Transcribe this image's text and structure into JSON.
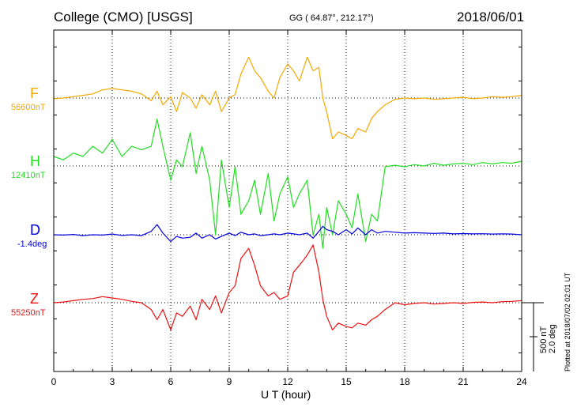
{
  "header": {
    "station": "College (CMO)  [USGS]",
    "coords": "GG ( 64.87°, 212.17°)",
    "date": "2018/06/01"
  },
  "plotted_note": "Plotted at 2018/07/02 02:01  UT",
  "scale": {
    "line1": "500 nT",
    "line2": "2.0 deg"
  },
  "chart_data": {
    "type": "line",
    "xlabel": "U T (hour)",
    "xlim": [
      0,
      24
    ],
    "xticks": [
      0,
      3,
      6,
      9,
      12,
      15,
      18,
      21,
      24
    ],
    "grid": true,
    "trace_scale": {
      "nT_per_division": 500,
      "deg_per_division": 2.0
    },
    "series": [
      {
        "name": "F",
        "baseline_label": "56600nT",
        "color": "#f5a800",
        "baseline": 56600,
        "unit": "nT",
        "x": [
          0,
          0.5,
          1,
          1.5,
          2,
          2.5,
          3,
          3.5,
          4,
          4.5,
          5,
          5.3,
          5.6,
          6,
          6.3,
          6.6,
          7,
          7.3,
          7.6,
          8,
          8.3,
          8.6,
          9,
          9.3,
          9.6,
          10,
          10.3,
          10.6,
          11,
          11.3,
          11.6,
          12,
          12.3,
          12.6,
          13,
          13.3,
          13.6,
          13.8,
          14,
          14.3,
          14.6,
          15,
          15.3,
          15.6,
          16,
          16.3,
          16.6,
          17,
          17.5,
          18,
          18.5,
          19,
          19.5,
          20,
          20.5,
          21,
          21.5,
          22,
          22.5,
          23,
          23.5,
          24
        ],
        "y": [
          56590,
          56600,
          56620,
          56640,
          56660,
          56720,
          56740,
          56720,
          56700,
          56660,
          56560,
          56700,
          56500,
          56620,
          56400,
          56680,
          56600,
          56450,
          56650,
          56500,
          56700,
          56400,
          56600,
          56650,
          56950,
          57200,
          57000,
          56900,
          56700,
          56600,
          56900,
          57100,
          57000,
          56850,
          57200,
          57000,
          57050,
          56600,
          56400,
          56000,
          56100,
          56050,
          56000,
          56150,
          56100,
          56300,
          56400,
          56500,
          56580,
          56600,
          56590,
          56600,
          56580,
          56590,
          56600,
          56610,
          56590,
          56600,
          56620,
          56610,
          56620,
          56640
        ]
      },
      {
        "name": "H",
        "baseline_label": "12410nT",
        "color": "#22dd22",
        "baseline": 12410,
        "unit": "nT",
        "x": [
          0,
          0.5,
          1,
          1.5,
          2,
          2.5,
          3,
          3.5,
          4,
          4.5,
          5,
          5.3,
          5.6,
          6,
          6.3,
          6.6,
          7,
          7.3,
          7.6,
          8,
          8.3,
          8.6,
          9,
          9.3,
          9.6,
          10,
          10.3,
          10.6,
          11,
          11.3,
          11.6,
          12,
          12.3,
          12.6,
          13,
          13.3,
          13.6,
          13.8,
          14,
          14.3,
          14.6,
          15,
          15.3,
          15.6,
          16,
          16.3,
          16.6,
          17,
          17.5,
          18,
          18.5,
          19,
          19.5,
          20,
          20.5,
          21,
          21.5,
          22,
          22.5,
          23,
          23.5,
          24
        ],
        "y": [
          12550,
          12500,
          12600,
          12550,
          12700,
          12600,
          12800,
          12550,
          12700,
          12650,
          12700,
          13100,
          12700,
          12200,
          12500,
          12400,
          12900,
          12300,
          12700,
          12200,
          11400,
          12500,
          11800,
          12400,
          11700,
          11900,
          12200,
          11700,
          12300,
          11600,
          12000,
          12250,
          11800,
          12000,
          12200,
          11400,
          11700,
          11200,
          11800,
          11400,
          11900,
          11700,
          11500,
          12000,
          11300,
          11700,
          11600,
          12400,
          12420,
          12400,
          12430,
          12410,
          12450,
          12420,
          12440,
          12450,
          12430,
          12460,
          12440,
          12460,
          12450,
          12480
        ]
      },
      {
        "name": "D",
        "baseline_label": "-1.4deg",
        "color": "#0000dd",
        "baseline": -1.4,
        "unit": "deg",
        "x": [
          0,
          0.5,
          1,
          1.5,
          2,
          2.5,
          3,
          3.5,
          4,
          4.5,
          5,
          5.3,
          5.6,
          6,
          6.3,
          6.6,
          7,
          7.3,
          7.6,
          8,
          8.3,
          8.6,
          9,
          9.3,
          9.6,
          10,
          10.3,
          10.6,
          11,
          11.3,
          11.6,
          12,
          12.3,
          12.6,
          13,
          13.3,
          13.6,
          13.8,
          14,
          14.3,
          14.6,
          15,
          15.3,
          15.6,
          16,
          16.3,
          16.6,
          17,
          17.5,
          18,
          18.5,
          19,
          19.5,
          20,
          20.5,
          21,
          21.5,
          22,
          22.5,
          23,
          23.5,
          24
        ],
        "y": [
          -1.4,
          -1.42,
          -1.38,
          -1.45,
          -1.4,
          -1.42,
          -1.36,
          -1.44,
          -1.4,
          -1.45,
          -1.2,
          -0.8,
          -1.3,
          -1.8,
          -1.5,
          -1.6,
          -1.55,
          -1.3,
          -1.6,
          -1.4,
          -1.65,
          -1.5,
          -1.3,
          -1.45,
          -1.25,
          -1.4,
          -1.35,
          -1.45,
          -1.4,
          -1.35,
          -1.4,
          -1.3,
          -1.35,
          -1.4,
          -1.3,
          -1.6,
          -1.2,
          -0.9,
          -1.1,
          -1.2,
          -1.4,
          -1.1,
          -1.35,
          -1.0,
          -1.4,
          -1.1,
          -1.3,
          -1.2,
          -1.25,
          -1.3,
          -1.28,
          -1.3,
          -1.32,
          -1.3,
          -1.35,
          -1.33,
          -1.35,
          -1.34,
          -1.36,
          -1.35,
          -1.36,
          -1.4
        ]
      },
      {
        "name": "Z",
        "baseline_label": "55250nT",
        "color": "#ee1111",
        "baseline": 55250,
        "unit": "nT",
        "x": [
          0,
          0.5,
          1,
          1.5,
          2,
          2.5,
          3,
          3.5,
          4,
          4.5,
          5,
          5.3,
          5.6,
          6,
          6.3,
          6.6,
          7,
          7.3,
          7.6,
          8,
          8.3,
          8.6,
          9,
          9.3,
          9.6,
          10,
          10.3,
          10.6,
          11,
          11.3,
          11.6,
          12,
          12.3,
          12.6,
          13,
          13.3,
          13.6,
          13.8,
          14,
          14.3,
          14.6,
          15,
          15.3,
          15.6,
          16,
          16.3,
          16.6,
          17,
          17.5,
          18,
          18.5,
          19,
          19.5,
          20,
          20.5,
          21,
          21.5,
          22,
          22.5,
          23,
          23.5,
          24
        ],
        "y": [
          55250,
          55260,
          55280,
          55300,
          55310,
          55340,
          55320,
          55300,
          55270,
          55250,
          55150,
          55000,
          55150,
          54850,
          55100,
          55050,
          55200,
          55000,
          55300,
          55150,
          55350,
          55100,
          55400,
          55500,
          55900,
          56050,
          55800,
          55500,
          55350,
          55400,
          55300,
          55350,
          55700,
          55800,
          55950,
          56100,
          55700,
          55300,
          55050,
          54850,
          54950,
          54900,
          54880,
          54950,
          54920,
          55000,
          55050,
          55150,
          55250,
          55220,
          55240,
          55250,
          55230,
          55240,
          55250,
          55240,
          55255,
          55260,
          55250,
          55265,
          55270,
          55280
        ]
      }
    ]
  }
}
